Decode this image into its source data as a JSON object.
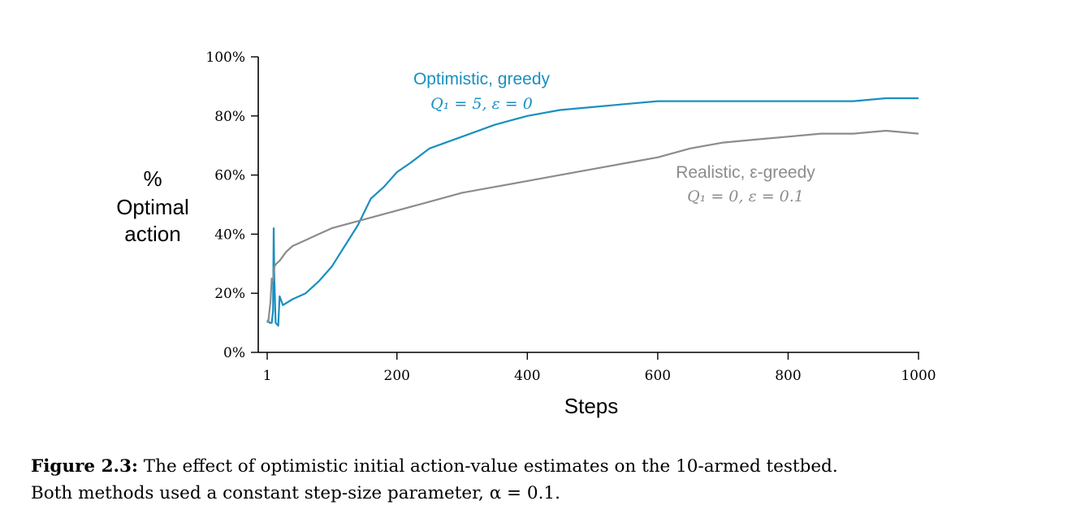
{
  "chart_data": {
    "type": "line",
    "ylabel_lines": [
      "%",
      "Optimal",
      "action"
    ],
    "xlabel": "Steps",
    "xlim": [
      1,
      1000
    ],
    "ylim": [
      0,
      100
    ],
    "x_ticks": [
      1,
      200,
      400,
      600,
      800,
      1000
    ],
    "y_ticks": [
      0,
      20,
      40,
      60,
      80,
      100
    ],
    "y_tick_labels": [
      "0%",
      "20%",
      "40%",
      "60%",
      "80%",
      "100%"
    ],
    "grid": false,
    "series": [
      {
        "name": "Optimistic, greedy",
        "params": "Q₁ = 5,  ε = 0",
        "color": "#1a8fc0",
        "x": [
          1,
          5,
          8,
          10,
          11,
          12,
          14,
          18,
          20,
          25,
          40,
          60,
          80,
          100,
          120,
          140,
          160,
          180,
          200,
          220,
          250,
          300,
          350,
          400,
          450,
          500,
          550,
          600,
          650,
          700,
          750,
          800,
          850,
          900,
          950,
          1000
        ],
        "values": [
          11,
          10,
          10,
          14,
          42,
          25,
          10,
          9,
          19,
          16,
          18,
          20,
          24,
          29,
          36,
          43,
          52,
          56,
          61,
          64,
          69,
          73,
          77,
          80,
          82,
          83,
          84,
          85,
          85,
          85,
          85,
          85,
          85,
          85,
          86,
          86
        ]
      },
      {
        "name": "Realistic, ε-greedy",
        "params": "Q₁ = 0,  ε = 0.1",
        "color": "#8c8c8c",
        "x": [
          1,
          3,
          6,
          8,
          10,
          12,
          15,
          20,
          30,
          40,
          60,
          80,
          100,
          150,
          200,
          250,
          300,
          350,
          400,
          450,
          500,
          550,
          600,
          650,
          700,
          750,
          800,
          850,
          900,
          950,
          1000
        ],
        "values": [
          10,
          11,
          17,
          25,
          24,
          29,
          30,
          31,
          34,
          36,
          38,
          40,
          42,
          45,
          48,
          51,
          54,
          56,
          58,
          60,
          62,
          64,
          66,
          69,
          71,
          72,
          73,
          74,
          74,
          75,
          74
        ]
      }
    ]
  },
  "caption": {
    "label": "Figure 2.3:",
    "line1": "The effect of optimistic initial action-value estimates on the 10-armed testbed.",
    "line2": "Both methods used a constant step-size parameter, α = 0.1."
  }
}
